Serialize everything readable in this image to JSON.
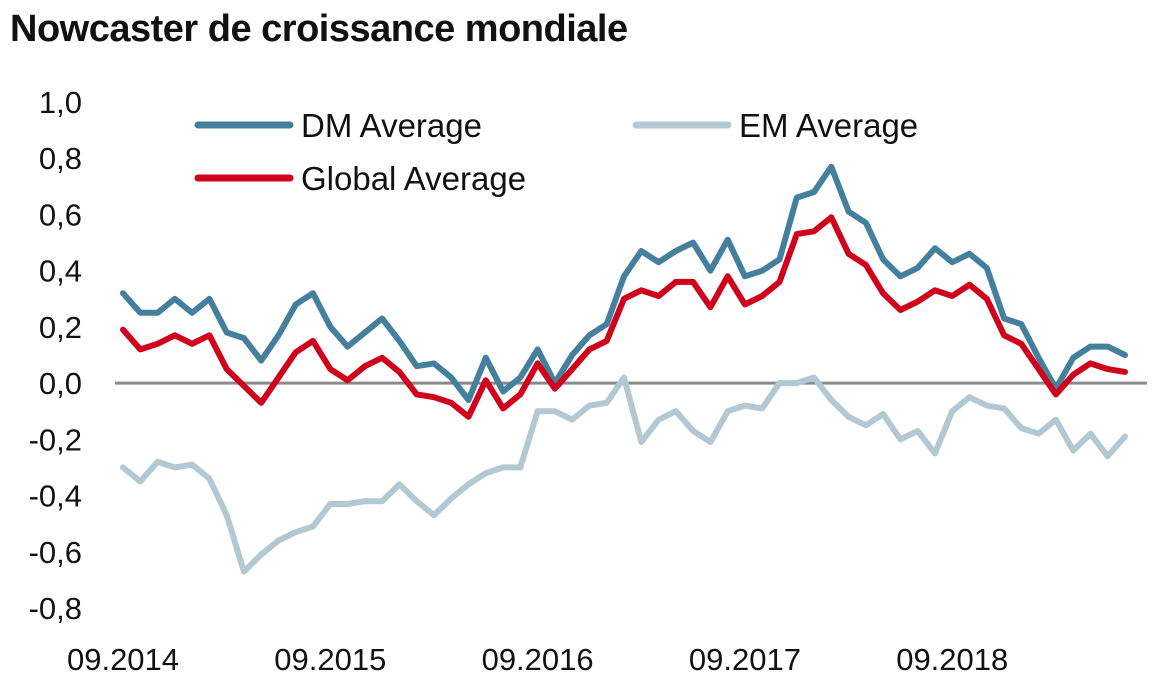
{
  "chart_data": {
    "type": "line",
    "title": "Nowcaster de croissance mondiale",
    "xlabel": "",
    "ylabel": "",
    "ylim": [
      -0.8,
      1.0
    ],
    "yticks": [
      "1,0",
      "0,8",
      "0,6",
      "0,4",
      "0,2",
      "0,0",
      "-0,2",
      "-0,4",
      "-0,6",
      "-0,8"
    ],
    "ytick_values": [
      1.0,
      0.8,
      0.6,
      0.4,
      0.2,
      0.0,
      -0.2,
      -0.4,
      -0.6,
      -0.8
    ],
    "xticks": [
      "09.2014",
      "09.2015",
      "09.2016",
      "09.2017",
      "09.2018"
    ],
    "x_start": "09.2014",
    "x_end": "06.2019",
    "x_frequency": "monthly",
    "zero_line": true,
    "grid": false,
    "legend_position": "top",
    "series": [
      {
        "name": "DM Average",
        "color": "#44809d",
        "values": [
          0.32,
          0.25,
          0.25,
          0.3,
          0.25,
          0.3,
          0.18,
          0.16,
          0.08,
          0.17,
          0.28,
          0.32,
          0.2,
          0.13,
          0.18,
          0.23,
          0.15,
          0.06,
          0.07,
          0.02,
          -0.06,
          0.09,
          -0.03,
          0.02,
          0.12,
          0.0,
          0.1,
          0.17,
          0.21,
          0.38,
          0.47,
          0.43,
          0.47,
          0.5,
          0.4,
          0.51,
          0.38,
          0.4,
          0.44,
          0.66,
          0.68,
          0.77,
          0.61,
          0.57,
          0.44,
          0.38,
          0.41,
          0.48,
          0.43,
          0.46,
          0.41,
          0.23,
          0.21,
          0.09,
          -0.02,
          0.09,
          0.13,
          0.13,
          0.1
        ]
      },
      {
        "name": "EM Average",
        "color": "#b2c8d2",
        "values": [
          -0.3,
          -0.35,
          -0.28,
          -0.3,
          -0.29,
          -0.34,
          -0.47,
          -0.67,
          -0.61,
          -0.56,
          -0.53,
          -0.51,
          -0.43,
          -0.43,
          -0.42,
          -0.42,
          -0.36,
          -0.42,
          -0.47,
          -0.41,
          -0.36,
          -0.32,
          -0.3,
          -0.3,
          -0.1,
          -0.1,
          -0.13,
          -0.08,
          -0.07,
          0.02,
          -0.21,
          -0.13,
          -0.1,
          -0.17,
          -0.21,
          -0.1,
          -0.08,
          -0.09,
          0.0,
          0.0,
          0.02,
          -0.06,
          -0.12,
          -0.15,
          -0.11,
          -0.2,
          -0.17,
          -0.25,
          -0.1,
          -0.05,
          -0.08,
          -0.09,
          -0.16,
          -0.18,
          -0.13,
          -0.24,
          -0.18,
          -0.26,
          -0.19
        ]
      },
      {
        "name": "Global Average",
        "color": "#d0021b",
        "values": [
          0.19,
          0.12,
          0.14,
          0.17,
          0.14,
          0.17,
          0.05,
          -0.01,
          -0.07,
          0.02,
          0.11,
          0.15,
          0.05,
          0.01,
          0.06,
          0.09,
          0.04,
          -0.04,
          -0.05,
          -0.07,
          -0.12,
          0.01,
          -0.09,
          -0.04,
          0.07,
          -0.02,
          0.05,
          0.12,
          0.15,
          0.3,
          0.33,
          0.31,
          0.36,
          0.36,
          0.27,
          0.38,
          0.28,
          0.31,
          0.36,
          0.53,
          0.54,
          0.59,
          0.46,
          0.42,
          0.32,
          0.26,
          0.29,
          0.33,
          0.31,
          0.35,
          0.3,
          0.17,
          0.14,
          0.05,
          -0.04,
          0.03,
          0.07,
          0.05,
          0.04
        ]
      }
    ]
  }
}
